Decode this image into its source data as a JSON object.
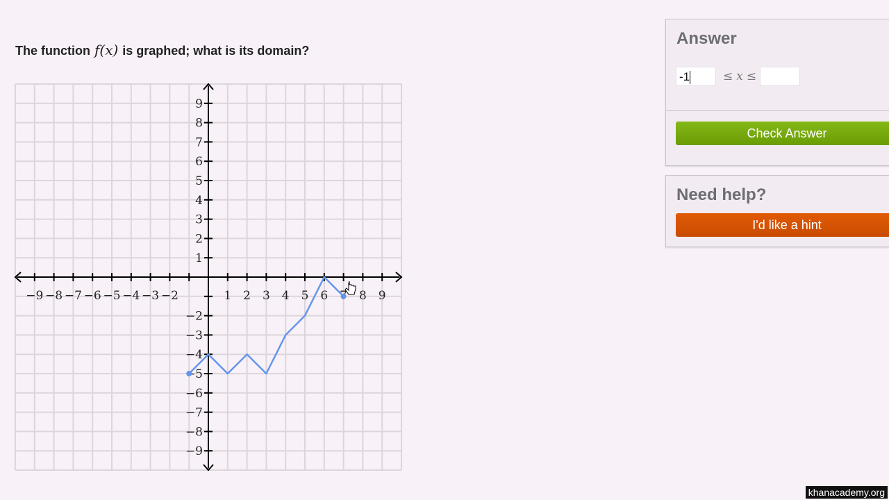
{
  "question": {
    "prefix": "The function",
    "math": "f(x)",
    "suffix": "is graphed; what is its domain?"
  },
  "answer_panel": {
    "title": "Answer",
    "lower_value": "-1",
    "upper_value": "",
    "relation_left": "≤",
    "variable": "x",
    "relation_right": "≤",
    "check_label": "Check Answer"
  },
  "help_panel": {
    "title": "Need help?",
    "hint_label": "I'd like a hint"
  },
  "watermark": "khanacademy.org",
  "colors": {
    "curve": "#6495ed",
    "check": "#76a90c",
    "hint": "#d65303"
  },
  "chart_data": {
    "type": "line",
    "xlim": [
      -10,
      10
    ],
    "ylim": [
      -10,
      10
    ],
    "grid": true,
    "x_ticks": [
      -9,
      -8,
      -7,
      -6,
      -5,
      -4,
      -3,
      -2,
      1,
      2,
      3,
      4,
      5,
      6,
      7,
      8,
      9
    ],
    "y_ticks": [
      -9,
      -8,
      -7,
      -6,
      -5,
      -4,
      -3,
      -2,
      1,
      2,
      3,
      4,
      5,
      6,
      7,
      8,
      9
    ],
    "points": [
      [
        -1,
        -5
      ],
      [
        0,
        -4
      ],
      [
        1,
        -5
      ],
      [
        2,
        -4
      ],
      [
        3,
        -5
      ],
      [
        4,
        -3
      ],
      [
        5,
        -2
      ],
      [
        6,
        0
      ],
      [
        7,
        -1
      ]
    ],
    "endpoints": "closed"
  }
}
